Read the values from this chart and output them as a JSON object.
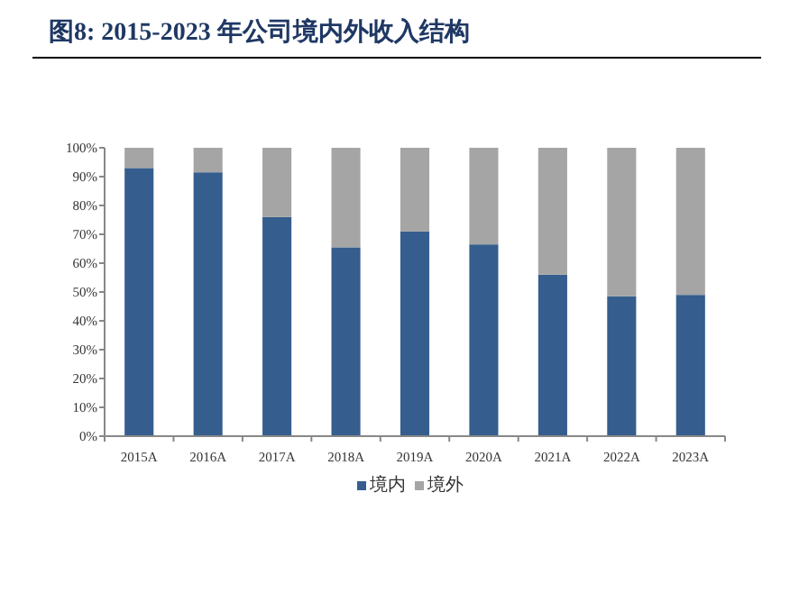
{
  "chart_data": {
    "type": "bar",
    "title": "图8:  2015-2023 年公司境内外收入结构",
    "categories": [
      "2015A",
      "2016A",
      "2017A",
      "2018A",
      "2019A",
      "2020A",
      "2021A",
      "2022A",
      "2023A"
    ],
    "stacked": true,
    "series": [
      {
        "name": "境内",
        "color": "#355e8e",
        "values": [
          93,
          91.5,
          76,
          65.5,
          71,
          66.5,
          56,
          48.5,
          49
        ]
      },
      {
        "name": "境外",
        "color": "#a5a5a5",
        "values": [
          7,
          8.5,
          24,
          34.5,
          29,
          33.5,
          44,
          51.5,
          51
        ]
      }
    ],
    "ylim": [
      0,
      100
    ],
    "yticks": [
      {
        "value": 0,
        "label": "0%"
      },
      {
        "value": 10,
        "label": "10%"
      },
      {
        "value": 20,
        "label": "20%"
      },
      {
        "value": 30,
        "label": "30%"
      },
      {
        "value": 40,
        "label": "40%"
      },
      {
        "value": 50,
        "label": "50%"
      },
      {
        "value": 60,
        "label": "60%"
      },
      {
        "value": 70,
        "label": "70%"
      },
      {
        "value": 80,
        "label": "80%"
      },
      {
        "value": 90,
        "label": "90%"
      },
      {
        "value": 100,
        "label": "100%"
      }
    ],
    "grid": false,
    "legend": "bottom"
  }
}
